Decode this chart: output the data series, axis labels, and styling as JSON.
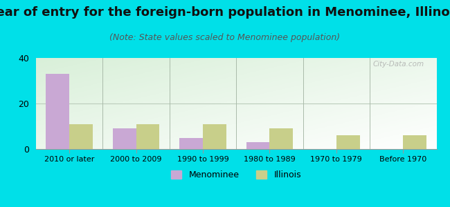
{
  "title": "Year of entry for the foreign-born population in Menominee, Illinois",
  "subtitle": "(Note: State values scaled to Menominee population)",
  "categories": [
    "2010 or later",
    "2000 to 2009",
    "1990 to 1999",
    "1980 to 1989",
    "1970 to 1979",
    "Before 1970"
  ],
  "menominee_values": [
    33,
    9,
    5,
    3,
    0,
    0
  ],
  "illinois_values": [
    11,
    11,
    11,
    9,
    6,
    6
  ],
  "menominee_color": "#c9a8d4",
  "illinois_color": "#c8cf8a",
  "ylim": [
    0,
    40
  ],
  "yticks": [
    0,
    20,
    40
  ],
  "background_outer": "#00e0e8",
  "bar_width": 0.35,
  "title_fontsize": 13,
  "subtitle_fontsize": 9,
  "legend_labels": [
    "Menominee",
    "Illinois"
  ],
  "watermark": "City-Data.com"
}
